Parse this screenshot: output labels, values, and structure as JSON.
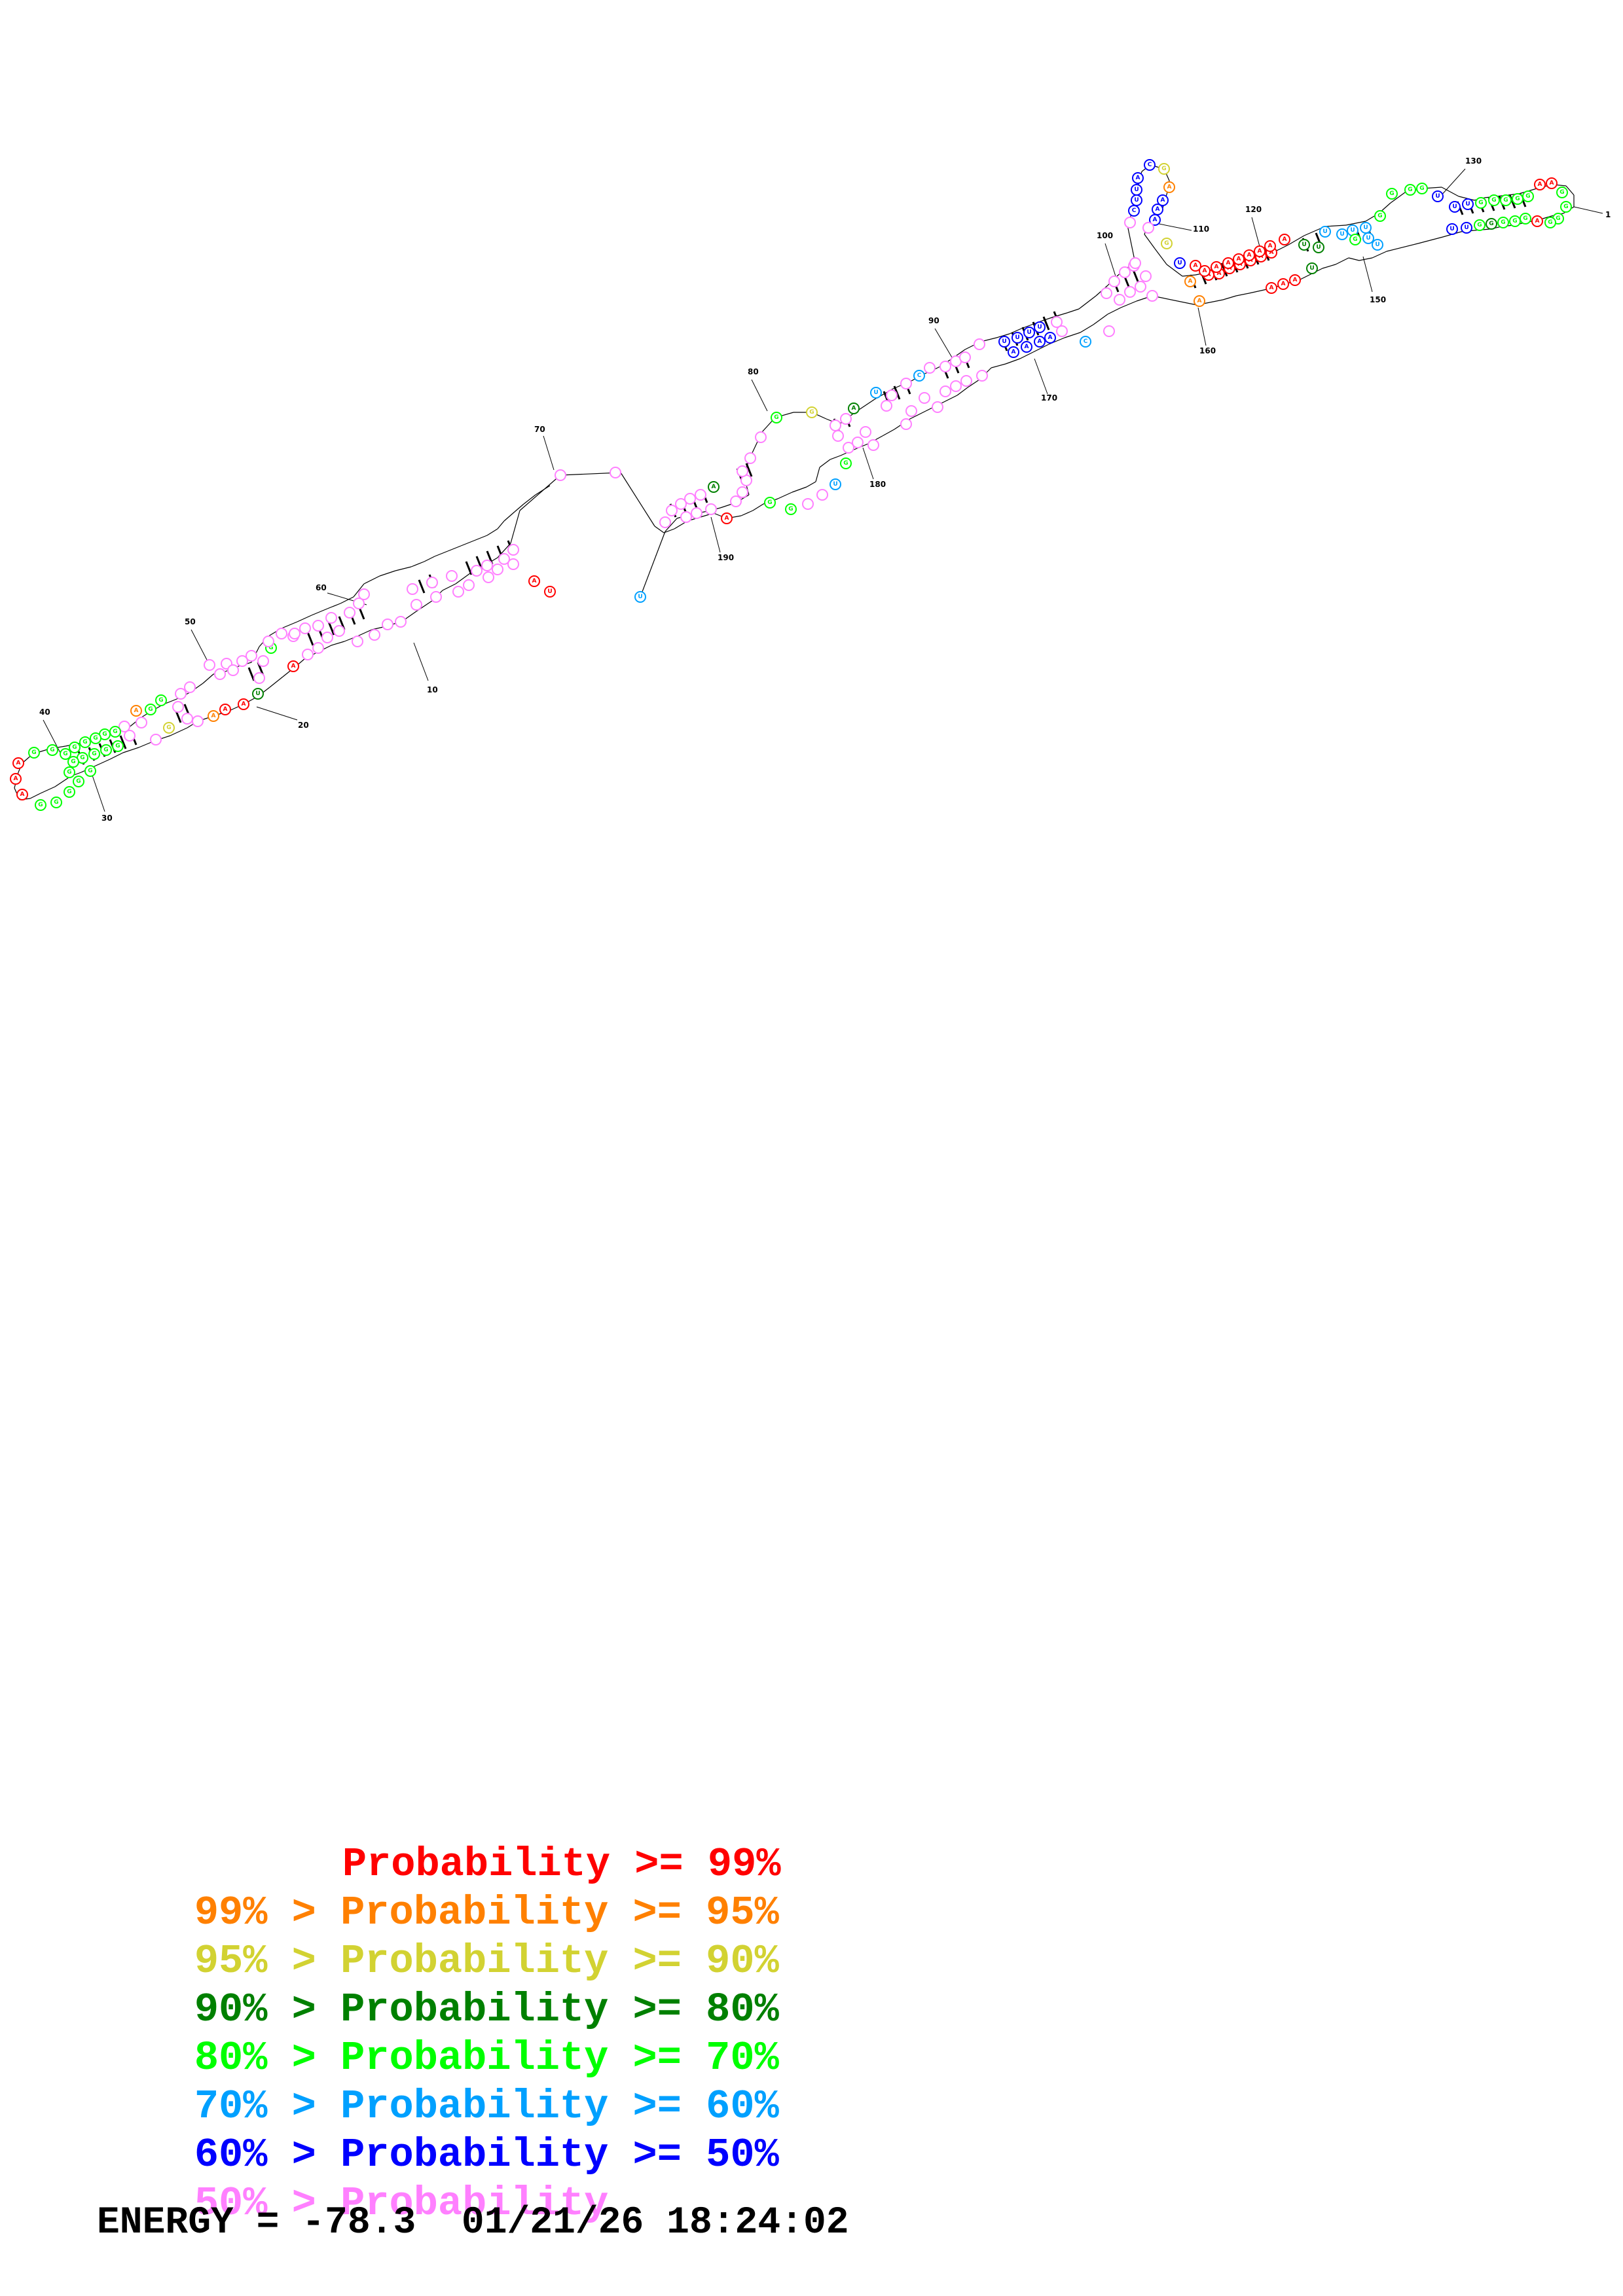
{
  "colors": {
    "p99": "#ff0000",
    "p95": "#ff8000",
    "p90": "#d2d232",
    "p80": "#008000",
    "p70": "#00ff00",
    "p60": "#00a0ff",
    "p50": "#0000ff",
    "low": "#ff80ff"
  },
  "structure": {
    "position_labels": [
      {
        "text": "10"
      },
      {
        "text": "20"
      },
      {
        "text": "30"
      },
      {
        "text": "40"
      },
      {
        "text": "50"
      },
      {
        "text": "60"
      },
      {
        "text": "70"
      },
      {
        "text": "80"
      },
      {
        "text": "90"
      },
      {
        "text": "100"
      },
      {
        "text": "110"
      },
      {
        "text": "120"
      },
      {
        "text": "130"
      },
      {
        "text": "150"
      },
      {
        "text": "160"
      },
      {
        "text": "170"
      },
      {
        "text": "180"
      },
      {
        "text": "190"
      },
      {
        "text": "1"
      }
    ]
  },
  "legend": {
    "rows": [
      {
        "prefix": "",
        "text": "Probability >= 99%",
        "color_key": "p99"
      },
      {
        "prefix": "99% > ",
        "text": "Probability >= 95%",
        "color_key": "p95"
      },
      {
        "prefix": "95% > ",
        "text": "Probability >= 90%",
        "color_key": "p90"
      },
      {
        "prefix": "90% > ",
        "text": "Probability >= 80%",
        "color_key": "p80"
      },
      {
        "prefix": "80% > ",
        "text": "Probability >= 70%",
        "color_key": "p70"
      },
      {
        "prefix": "70% > ",
        "text": "Probability >= 60%",
        "color_key": "p60"
      },
      {
        "prefix": "60% > ",
        "text": "Probability >= 50%",
        "color_key": "p50"
      },
      {
        "prefix": "50% > ",
        "text": "Probability",
        "color_key": "low"
      }
    ],
    "energy_line": "ENERGY = -78.3  01/21/26 18:24:02"
  }
}
